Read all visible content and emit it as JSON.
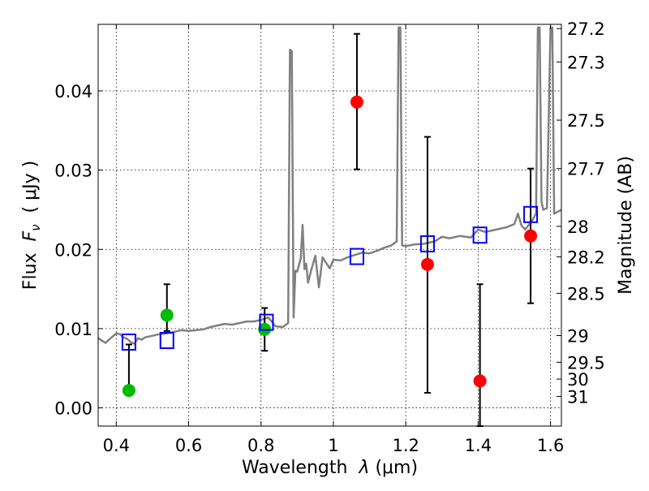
{
  "chart_data": {
    "type": "scatter",
    "xlabel": "Wavelength  λ (μm)",
    "ylabel": "Flux  F_ν  ( μJy )",
    "ylabel_parts": {
      "prefix": "Flux  ",
      "symbol": "F",
      "subscript": "ν",
      "suffix": "  ( μJy )"
    },
    "xlabel_parts": {
      "prefix": "Wavelength  ",
      "symbol": "λ",
      "suffix": " (μm)"
    },
    "y2label": "Magnitude (AB)",
    "xlim": [
      0.35,
      1.63
    ],
    "ylim": [
      -0.0023,
      0.0484
    ],
    "grid": true,
    "x_ticks": [
      {
        "value": 0.4,
        "label": "0.4"
      },
      {
        "value": 0.6,
        "label": "0.6"
      },
      {
        "value": 0.8,
        "label": "0.8"
      },
      {
        "value": 1.0,
        "label": "1"
      },
      {
        "value": 1.2,
        "label": "1.2"
      },
      {
        "value": 1.4,
        "label": "1.4"
      },
      {
        "value": 1.6,
        "label": "1.6"
      }
    ],
    "y_ticks": [
      {
        "value": 0.0,
        "label": "0.00"
      },
      {
        "value": 0.01,
        "label": "0.01"
      },
      {
        "value": 0.02,
        "label": "0.02"
      },
      {
        "value": 0.03,
        "label": "0.03"
      },
      {
        "value": 0.04,
        "label": "0.04"
      }
    ],
    "y2_ticks": [
      {
        "mag": 27.2,
        "label": "27.2"
      },
      {
        "mag": 27.3,
        "label": "27.3"
      },
      {
        "mag": 27.5,
        "label": "27.5"
      },
      {
        "mag": 27.7,
        "label": "27.7"
      },
      {
        "mag": 28.0,
        "label": "28"
      },
      {
        "mag": 28.2,
        "label": "28.2"
      },
      {
        "mag": 28.5,
        "label": "28.5"
      },
      {
        "mag": 29.0,
        "label": "29"
      },
      {
        "mag": 29.5,
        "label": "29.5"
      },
      {
        "mag": 30.0,
        "label": "30"
      },
      {
        "mag": 31.0,
        "label": "31"
      }
    ],
    "series": [
      {
        "type": "line",
        "color": "#808080",
        "x": [
          0.35,
          0.36,
          0.37,
          0.38,
          0.39,
          0.4,
          0.41,
          0.42,
          0.43,
          0.44,
          0.45,
          0.46,
          0.47,
          0.48,
          0.5,
          0.52,
          0.54,
          0.56,
          0.58,
          0.6,
          0.62,
          0.64,
          0.66,
          0.68,
          0.7,
          0.72,
          0.74,
          0.76,
          0.78,
          0.8,
          0.82,
          0.84,
          0.86,
          0.875,
          0.88,
          0.885,
          0.89,
          0.895,
          0.9,
          0.91,
          0.915,
          0.92,
          0.925,
          0.93,
          0.94,
          0.95,
          0.96,
          0.97,
          0.98,
          0.99,
          1.0,
          1.02,
          1.04,
          1.06,
          1.08,
          1.1,
          1.12,
          1.14,
          1.16,
          1.175,
          1.18,
          1.185,
          1.19,
          1.2,
          1.22,
          1.25,
          1.28,
          1.3,
          1.32,
          1.35,
          1.38,
          1.4,
          1.42,
          1.45,
          1.48,
          1.5,
          1.51,
          1.52,
          1.53,
          1.55,
          1.56,
          1.565,
          1.57,
          1.575,
          1.58,
          1.59,
          1.6,
          1.605,
          1.61,
          1.63
        ],
        "y": [
          0.0088,
          0.0085,
          0.0082,
          0.0086,
          0.009,
          0.0094,
          0.0093,
          0.0089,
          0.0087,
          0.0083,
          0.0081,
          0.0088,
          0.0086,
          0.0089,
          0.0091,
          0.0093,
          0.0094,
          0.0096,
          0.0098,
          0.0097,
          0.0098,
          0.0099,
          0.0102,
          0.0104,
          0.0106,
          0.0105,
          0.0107,
          0.0109,
          0.0109,
          0.0111,
          0.0114,
          0.0103,
          0.0102,
          0.0107,
          0.0452,
          0.045,
          0.0114,
          0.0173,
          0.0172,
          0.0189,
          0.0231,
          0.0175,
          0.0182,
          0.0158,
          0.0176,
          0.0192,
          0.0152,
          0.019,
          0.0183,
          0.0176,
          0.0187,
          0.0186,
          0.019,
          0.0193,
          0.0196,
          0.0195,
          0.0198,
          0.0202,
          0.0205,
          0.021,
          0.048,
          0.048,
          0.0205,
          0.0204,
          0.0206,
          0.0207,
          0.021,
          0.0216,
          0.0214,
          0.0217,
          0.0215,
          0.0225,
          0.0222,
          0.0225,
          0.0228,
          0.0232,
          0.0245,
          0.023,
          0.0225,
          0.0237,
          0.0245,
          0.048,
          0.048,
          0.026,
          0.025,
          0.0252,
          0.048,
          0.048,
          0.0245,
          0.025
        ]
      },
      {
        "type": "points",
        "color": "#00bb00",
        "marker": "circle",
        "x": [
          0.435,
          0.54,
          0.81
        ],
        "y": [
          0.0022,
          0.0117,
          0.0099
        ],
        "err_low": [
          0.0022,
          0.0097,
          0.0072
        ],
        "err_high": [
          0.008,
          0.0156,
          0.0126
        ]
      },
      {
        "type": "points",
        "color": "#ff0000",
        "marker": "circle",
        "x": [
          1.065,
          1.26,
          1.405,
          1.545
        ],
        "y": [
          0.0386,
          0.0181,
          0.0034,
          0.0217
        ],
        "err_low": [
          0.0301,
          0.0019,
          -0.0023,
          0.0132
        ],
        "err_high": [
          0.0472,
          0.0342,
          0.0156,
          0.0302
        ]
      },
      {
        "type": "points",
        "color": "#0000ff",
        "marker": "square-open",
        "x": [
          0.435,
          0.54,
          0.815,
          1.065,
          1.26,
          1.405,
          1.545
        ],
        "y": [
          0.0083,
          0.0085,
          0.0108,
          0.0191,
          0.0207,
          0.0218,
          0.0244
        ]
      }
    ]
  }
}
